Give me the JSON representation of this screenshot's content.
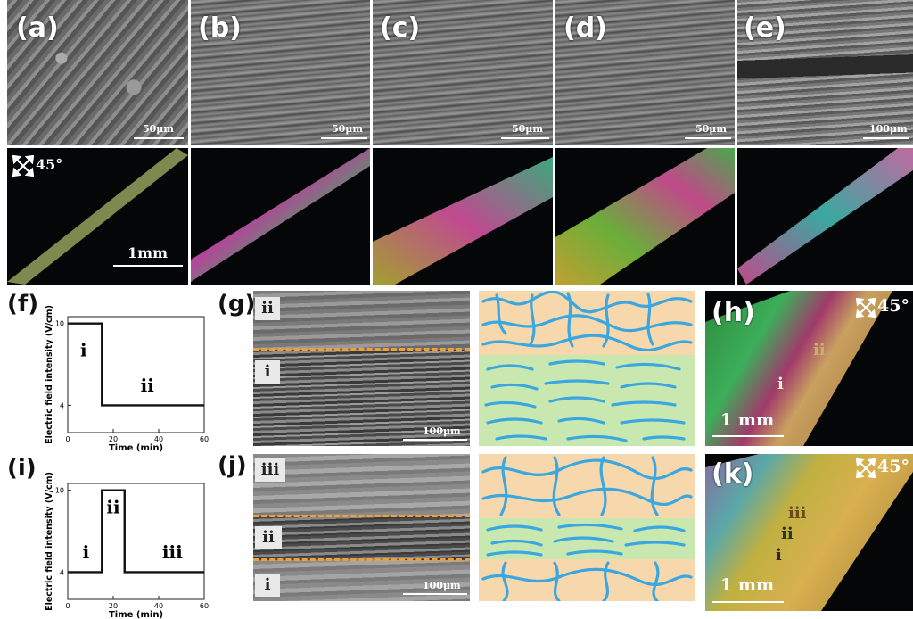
{
  "top_row": {
    "letters": [
      "(a)",
      "(b)",
      "(c)",
      "(d)",
      "(e)"
    ],
    "sem_scales": [
      "50μm",
      "50μm",
      "50μm",
      "50μm",
      "100μm"
    ],
    "pom_angle": "45°",
    "pom_scale": "1mm"
  },
  "panel_f": {
    "letter": "(f)",
    "ylabel": "Electric field intensity (V/cm)",
    "xlabel": "Time (min)",
    "yticks": [
      "10",
      "4"
    ],
    "xticks": [
      "0",
      "20",
      "40",
      "60"
    ],
    "regions": [
      "i",
      "ii"
    ]
  },
  "panel_i": {
    "letter": "(i)",
    "ylabel": "Electric field intensity (V/cm)",
    "xlabel": "Time (min)",
    "yticks": [
      "10",
      "4"
    ],
    "xticks": [
      "0",
      "20",
      "40",
      "60"
    ],
    "regions": [
      "i",
      "ii",
      "iii"
    ]
  },
  "panel_g": {
    "letter": "(g)",
    "tags": [
      "ii",
      "i"
    ],
    "scale": "100μm"
  },
  "panel_j": {
    "letter": "(j)",
    "tags": [
      "iii",
      "ii",
      "i"
    ],
    "scale": "100μm"
  },
  "panel_h": {
    "letter": "(h)",
    "angle": "45°",
    "scale": "1 mm",
    "labels": [
      "ii",
      "i"
    ]
  },
  "panel_k": {
    "letter": "(k)",
    "angle": "45°",
    "scale": "1 mm",
    "labels": [
      "iii",
      "ii",
      "i"
    ]
  },
  "chart_data": [
    {
      "type": "line",
      "xlabel": "Time (min)",
      "ylabel": "Electric field intensity (V/cm)",
      "x": [
        0,
        15,
        15,
        60
      ],
      "y": [
        10,
        10,
        4,
        4
      ],
      "xlim": [
        0,
        60
      ]
    },
    {
      "type": "line",
      "xlabel": "Time (min)",
      "ylabel": "Electric field intensity (V/cm)",
      "x": [
        0,
        15,
        15,
        25,
        25,
        60
      ],
      "y": [
        4,
        4,
        10,
        10,
        4,
        4
      ],
      "xlim": [
        0,
        60
      ]
    }
  ],
  "colors": {
    "orange_dash": "#f0a030",
    "fiber": "#3aa7e0",
    "ordered_bg": "#c9e8b0",
    "random_bg": "#f7d7ac"
  }
}
